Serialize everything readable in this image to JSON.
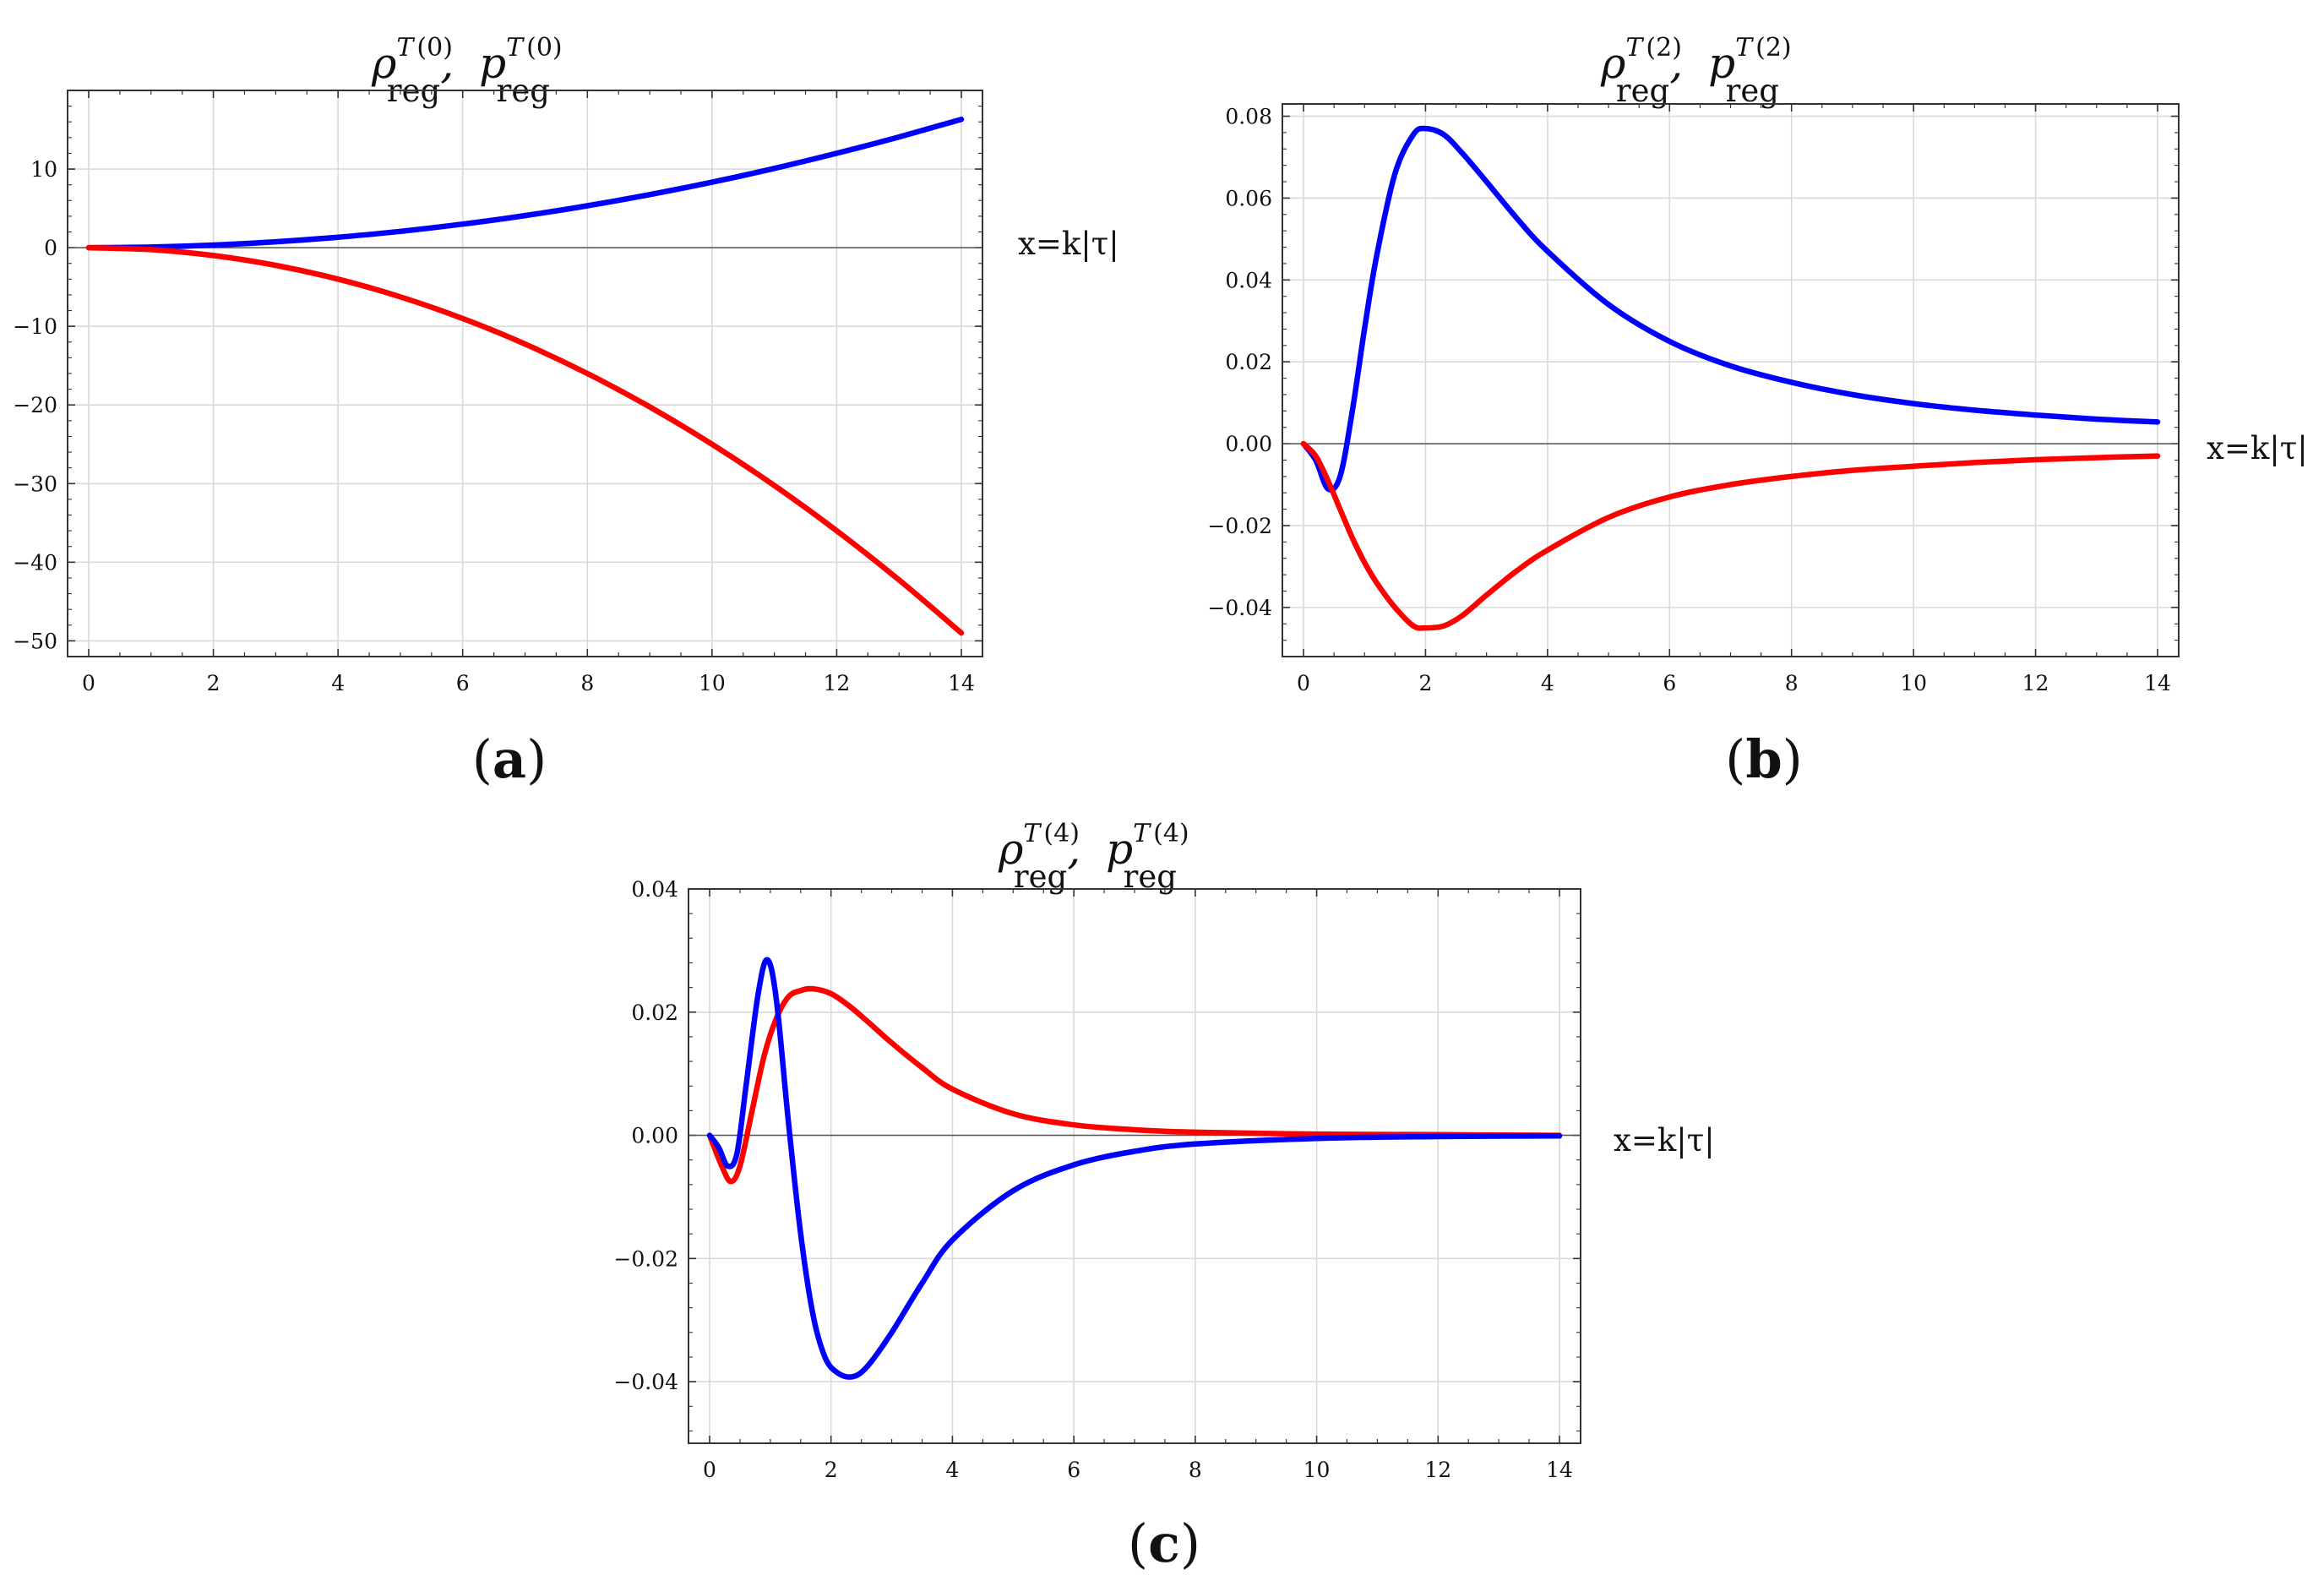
{
  "figure": {
    "colors": {
      "rho": "#ff0000",
      "p": "#0000ff"
    }
  },
  "chart_data": [
    {
      "type": "line",
      "panel": "a",
      "title": {
        "rho_symbol": "ρ",
        "p_symbol": "p",
        "superscript": "T",
        "order": "(0)",
        "subscript": "reg",
        "separator": ","
      },
      "xlabel": "x=k|τ|",
      "xlim": [
        0,
        14
      ],
      "ylim": [
        -52,
        20
      ],
      "xticks": [
        0,
        2,
        4,
        6,
        8,
        10,
        12,
        14
      ],
      "yticks": [
        -50,
        -40,
        -30,
        -20,
        -10,
        0,
        10
      ],
      "yticklabels": [
        "−50",
        "−40",
        "−30",
        "−20",
        "−10",
        "0",
        "10"
      ],
      "grid": true,
      "series": [
        {
          "name": "p_reg^T(0)",
          "color": "#0000ff",
          "x": [
            0,
            1,
            2,
            3,
            4,
            5,
            6,
            7,
            8,
            9,
            10,
            11,
            12,
            13,
            14
          ],
          "y": [
            0,
            0.08,
            0.33,
            0.75,
            1.33,
            2.08,
            3.0,
            4.08,
            5.33,
            6.75,
            8.33,
            10.08,
            12.0,
            14.08,
            16.33
          ]
        },
        {
          "name": "rho_reg^T(0)",
          "color": "#ff0000",
          "x": [
            0,
            1,
            2,
            3,
            4,
            5,
            6,
            7,
            8,
            9,
            10,
            11,
            12,
            13,
            14
          ],
          "y": [
            0,
            -0.25,
            -1.0,
            -2.25,
            -4.0,
            -6.25,
            -9.0,
            -12.25,
            -16.0,
            -20.25,
            -25.0,
            -30.25,
            -36.0,
            -42.25,
            -49.0
          ]
        }
      ]
    },
    {
      "type": "line",
      "panel": "b",
      "title": {
        "rho_symbol": "ρ",
        "p_symbol": "p",
        "superscript": "T",
        "order": "(2)",
        "subscript": "reg",
        "separator": ","
      },
      "xlabel": "x=k|τ|",
      "xlim": [
        0,
        14
      ],
      "ylim": [
        -0.052,
        0.083
      ],
      "xticks": [
        0,
        2,
        4,
        6,
        8,
        10,
        12,
        14
      ],
      "yticks": [
        -0.04,
        -0.02,
        0.0,
        0.02,
        0.04,
        0.06,
        0.08
      ],
      "yticklabels": [
        "−0.04",
        "−0.02",
        "0.00",
        "0.02",
        "0.04",
        "0.06",
        "0.08"
      ],
      "grid": true,
      "series": [
        {
          "name": "p_reg^T(2)",
          "color": "#0000ff",
          "x": [
            0,
            0.2,
            0.4,
            0.6,
            0.8,
            1.0,
            1.2,
            1.5,
            1.8,
            2.0,
            2.3,
            2.6,
            3.0,
            3.5,
            4.0,
            5.0,
            6.0,
            7.0,
            8.0,
            9.0,
            10.0,
            11.0,
            12.0,
            13.0,
            14.0
          ],
          "y": [
            0,
            -0.004,
            -0.011,
            -0.008,
            0.008,
            0.028,
            0.046,
            0.066,
            0.0755,
            0.077,
            0.0755,
            0.071,
            0.064,
            0.055,
            0.047,
            0.034,
            0.025,
            0.019,
            0.015,
            0.012,
            0.0098,
            0.0082,
            0.007,
            0.006,
            0.0053
          ]
        },
        {
          "name": "rho_reg^T(2)",
          "color": "#ff0000",
          "x": [
            0,
            0.2,
            0.4,
            0.6,
            0.8,
            1.0,
            1.2,
            1.5,
            1.8,
            2.0,
            2.3,
            2.6,
            3.0,
            3.5,
            4.0,
            5.0,
            6.0,
            7.0,
            8.0,
            9.0,
            10.0,
            11.0,
            12.0,
            13.0,
            14.0
          ],
          "y": [
            0,
            -0.003,
            -0.009,
            -0.016,
            -0.023,
            -0.029,
            -0.034,
            -0.04,
            -0.0445,
            -0.045,
            -0.0445,
            -0.042,
            -0.037,
            -0.031,
            -0.026,
            -0.018,
            -0.013,
            -0.01,
            -0.008,
            -0.0065,
            -0.0055,
            -0.0046,
            -0.0039,
            -0.0034,
            -0.003
          ]
        }
      ]
    },
    {
      "type": "line",
      "panel": "c",
      "title": {
        "rho_symbol": "ρ",
        "p_symbol": "p",
        "superscript": "T",
        "order": "(4)",
        "subscript": "reg",
        "separator": ","
      },
      "xlabel": "x=k|τ|",
      "xlim": [
        0,
        14
      ],
      "ylim": [
        -0.05,
        0.04
      ],
      "xticks": [
        0,
        2,
        4,
        6,
        8,
        10,
        12,
        14
      ],
      "yticks": [
        -0.04,
        -0.02,
        0.0,
        0.02,
        0.04
      ],
      "yticklabels": [
        "−0.04",
        "−0.02",
        "0.00",
        "0.02",
        "0.04"
      ],
      "grid": true,
      "series": [
        {
          "name": "rho_reg^T(4)",
          "color": "#ff0000",
          "x": [
            0,
            0.2,
            0.35,
            0.5,
            0.7,
            0.9,
            1.1,
            1.3,
            1.5,
            1.7,
            2.0,
            2.3,
            2.6,
            3.0,
            3.5,
            4.0,
            5.0,
            6.0,
            7.0,
            8.0,
            10.0,
            12.0,
            14.0
          ],
          "y": [
            0,
            -0.005,
            -0.0075,
            -0.005,
            0.004,
            0.013,
            0.019,
            0.0225,
            0.0235,
            0.0238,
            0.023,
            0.021,
            0.0185,
            0.015,
            0.011,
            0.0075,
            0.0035,
            0.0017,
            0.0009,
            0.0005,
            0.0002,
            0.0001,
            0.0
          ]
        },
        {
          "name": "p_reg^T(4)",
          "color": "#0000ff",
          "x": [
            0,
            0.15,
            0.3,
            0.45,
            0.6,
            0.8,
            0.95,
            1.1,
            1.3,
            1.5,
            1.7,
            1.9,
            2.1,
            2.35,
            2.6,
            3.0,
            3.5,
            4.0,
            5.0,
            6.0,
            7.0,
            8.0,
            10.0,
            12.0,
            14.0
          ],
          "y": [
            0,
            -0.002,
            -0.005,
            -0.003,
            0.008,
            0.023,
            0.0285,
            0.022,
            0.002,
            -0.016,
            -0.029,
            -0.036,
            -0.0385,
            -0.0392,
            -0.0375,
            -0.032,
            -0.024,
            -0.017,
            -0.009,
            -0.0048,
            -0.0026,
            -0.0014,
            -0.0005,
            -0.0002,
            -0.0001
          ]
        }
      ]
    }
  ],
  "panel_labels": {
    "a": {
      "open": "(",
      "letter": "a",
      "close": ")"
    },
    "b": {
      "open": "(",
      "letter": "b",
      "close": ")"
    },
    "c": {
      "open": "(",
      "letter": "c",
      "close": ")"
    }
  }
}
